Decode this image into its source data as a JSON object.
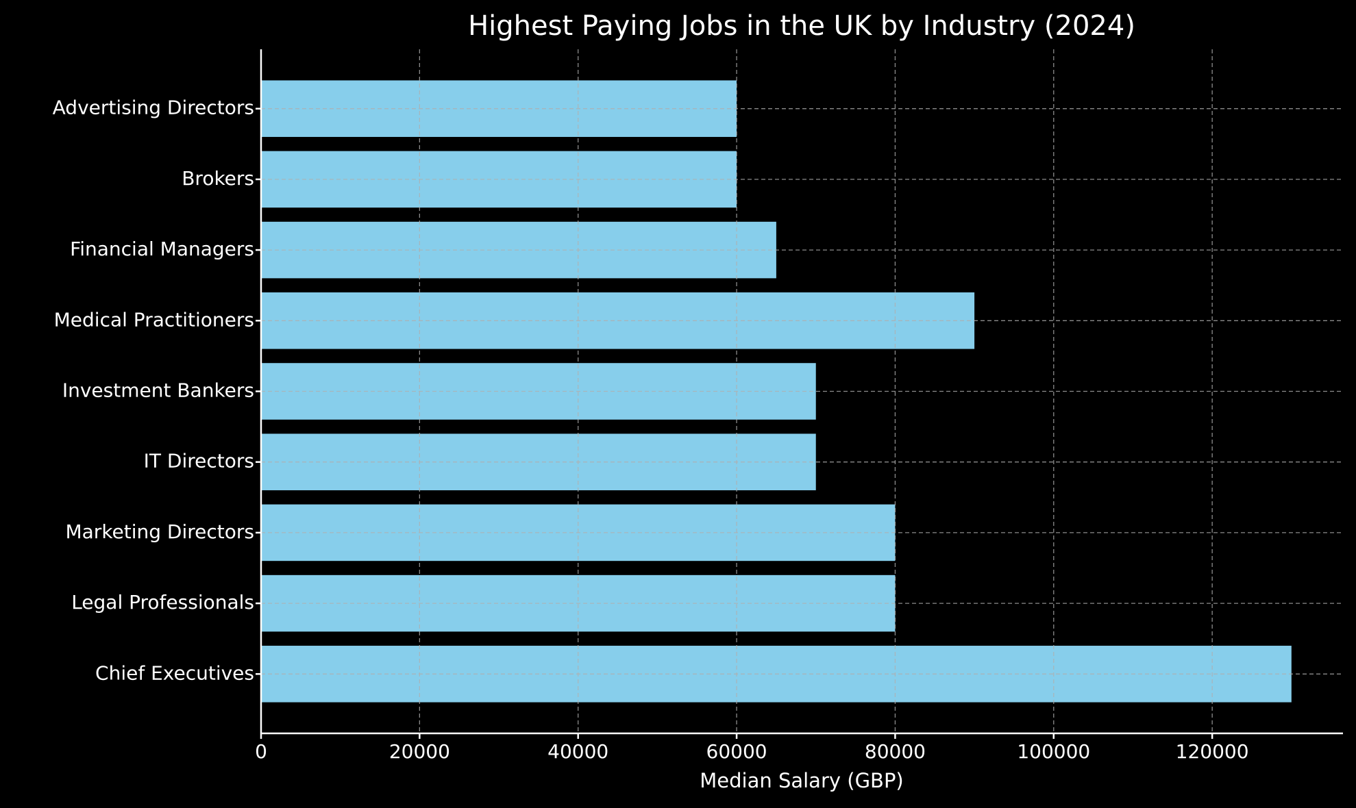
{
  "chart_data": {
    "type": "bar",
    "orientation": "horizontal",
    "title": "Highest Paying Jobs in the UK by Industry (2024)",
    "xlabel": "Median Salary (GBP)",
    "categories": [
      "Chief Executives",
      "Legal Professionals",
      "Marketing Directors",
      "IT Directors",
      "Investment Bankers",
      "Medical Practitioners",
      "Financial Managers",
      "Brokers",
      "Advertising Directors"
    ],
    "values": [
      130000,
      80000,
      80000,
      70000,
      70000,
      90000,
      65000,
      60000,
      60000
    ],
    "color": "#87ceeb",
    "xlim": [
      0,
      136500
    ],
    "xticks": [
      0,
      20000,
      40000,
      60000,
      80000,
      100000,
      120000
    ],
    "grid": true
  }
}
